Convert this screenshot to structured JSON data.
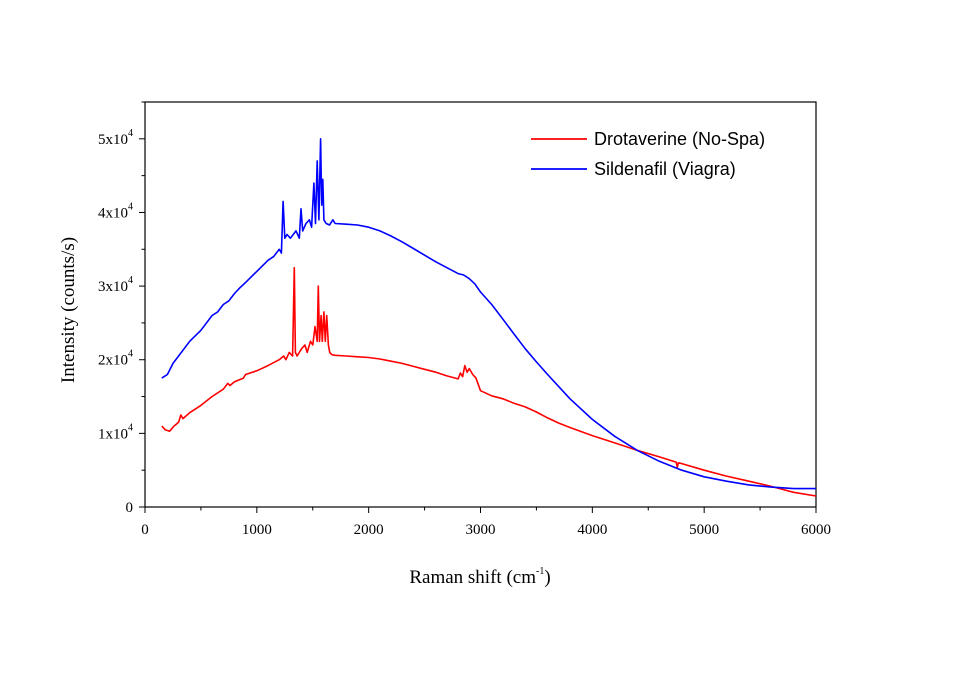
{
  "chart_data": {
    "type": "line",
    "xlabel": "Raman shift (cm",
    "xlabel_sup": "-1",
    "xlabel_close": ")",
    "ylabel": "Intensity (counts/s)",
    "xlim": [
      0,
      6000
    ],
    "ylim": [
      0,
      55000
    ],
    "x_ticks": [
      0,
      1000,
      2000,
      3000,
      4000,
      5000,
      6000
    ],
    "x_tick_labels": [
      "0",
      "1000",
      "2000",
      "3000",
      "4000",
      "5000",
      "6000"
    ],
    "y_ticks": [
      0,
      10000,
      20000,
      30000,
      40000,
      50000
    ],
    "y_tick_labels": [
      {
        "base": "0",
        "exp": ""
      },
      {
        "base": "1x10",
        "exp": "4"
      },
      {
        "base": "2x10",
        "exp": "4"
      },
      {
        "base": "3x10",
        "exp": "4"
      },
      {
        "base": "4x10",
        "exp": "4"
      },
      {
        "base": "5x10",
        "exp": "4"
      }
    ],
    "legend_position": "top-right",
    "grid": false,
    "series": [
      {
        "name": "Drotaverine (No-Spa)",
        "color": "#ff0000",
        "x": [
          150,
          180,
          220,
          260,
          300,
          320,
          340,
          400,
          500,
          600,
          700,
          740,
          760,
          800,
          880,
          900,
          1000,
          1100,
          1200,
          1240,
          1260,
          1290,
          1320,
          1335,
          1345,
          1360,
          1400,
          1430,
          1450,
          1480,
          1500,
          1520,
          1540,
          1550,
          1560,
          1575,
          1585,
          1600,
          1612,
          1625,
          1640,
          1652,
          1670,
          1700,
          1800,
          1900,
          2000,
          2100,
          2200,
          2300,
          2400,
          2500,
          2600,
          2700,
          2800,
          2820,
          2840,
          2860,
          2880,
          2900,
          2930,
          2960,
          3000,
          3100,
          3200,
          3300,
          3400,
          3500,
          3600,
          3700,
          3800,
          4000,
          4200,
          4400,
          4600,
          4750,
          4760,
          4770,
          4800,
          5000,
          5200,
          5400,
          5600,
          5800,
          6000
        ],
        "y": [
          11000,
          10500,
          10300,
          11000,
          11500,
          12500,
          12000,
          12800,
          13800,
          15000,
          16000,
          16800,
          16500,
          17000,
          17500,
          18000,
          18500,
          19200,
          20000,
          20500,
          20000,
          21000,
          20500,
          32500,
          21000,
          20500,
          21500,
          22000,
          21000,
          22500,
          22000,
          24500,
          22500,
          30000,
          22500,
          26000,
          22500,
          26500,
          22500,
          26000,
          22000,
          21000,
          20700,
          20600,
          20500,
          20400,
          20300,
          20100,
          19800,
          19500,
          19100,
          18700,
          18300,
          17800,
          17400,
          18200,
          17700,
          19200,
          18300,
          18800,
          18000,
          17500,
          15800,
          15100,
          14700,
          14100,
          13600,
          12900,
          12100,
          11400,
          10800,
          9700,
          8700,
          7700,
          6800,
          6100,
          5400,
          6000,
          5900,
          5000,
          4200,
          3500,
          2800,
          2000,
          1500
        ]
      },
      {
        "name": "Sildenafil (Viagra)",
        "color": "#0000ff",
        "x": [
          150,
          200,
          250,
          300,
          400,
          500,
          600,
          650,
          700,
          750,
          800,
          850,
          900,
          1000,
          1100,
          1150,
          1200,
          1220,
          1235,
          1250,
          1270,
          1300,
          1350,
          1380,
          1395,
          1410,
          1440,
          1470,
          1490,
          1510,
          1525,
          1540,
          1555,
          1570,
          1580,
          1590,
          1600,
          1620,
          1650,
          1680,
          1700,
          1800,
          1900,
          2000,
          2100,
          2200,
          2300,
          2400,
          2500,
          2600,
          2700,
          2800,
          2850,
          2900,
          2950,
          3000,
          3100,
          3200,
          3300,
          3400,
          3500,
          3600,
          3800,
          4000,
          4200,
          4400,
          4600,
          4800,
          5000,
          5200,
          5400,
          5600,
          5800,
          6000
        ],
        "y": [
          17500,
          18000,
          19500,
          20500,
          22500,
          24000,
          26000,
          26500,
          27500,
          28000,
          29000,
          29800,
          30500,
          32000,
          33500,
          34000,
          35000,
          34500,
          41500,
          36500,
          37000,
          36500,
          37500,
          36500,
          40500,
          37500,
          38500,
          39000,
          38000,
          44000,
          38500,
          47000,
          39000,
          50000,
          41000,
          44500,
          39000,
          38500,
          38300,
          39000,
          38500,
          38400,
          38300,
          38000,
          37500,
          36800,
          36000,
          35100,
          34200,
          33300,
          32500,
          31700,
          31500,
          31000,
          30300,
          29200,
          27500,
          25500,
          23500,
          21500,
          19700,
          18000,
          14700,
          11900,
          9600,
          7700,
          6200,
          5000,
          4100,
          3500,
          3000,
          2700,
          2500,
          2500
        ]
      }
    ]
  }
}
